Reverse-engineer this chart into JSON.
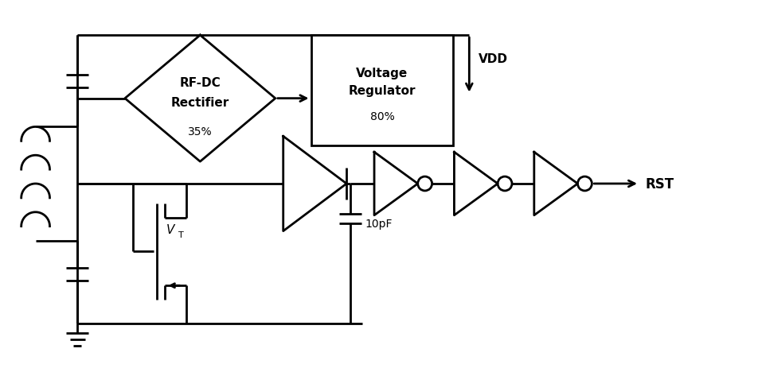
{
  "bg_color": "#ffffff",
  "line_color": "#000000",
  "line_width": 2.0,
  "rf_dc_label1": "RF-DC",
  "rf_dc_label2": "Rectifier",
  "rf_dc_pct": "35%",
  "vreg_label1": "Voltage",
  "vreg_label2": "Regulator",
  "vreg_pct": "80%",
  "vdd_label": "VDD",
  "rst_label": "RST",
  "cap_label": "10pF",
  "vt_label": "V",
  "vt_sub": "T"
}
